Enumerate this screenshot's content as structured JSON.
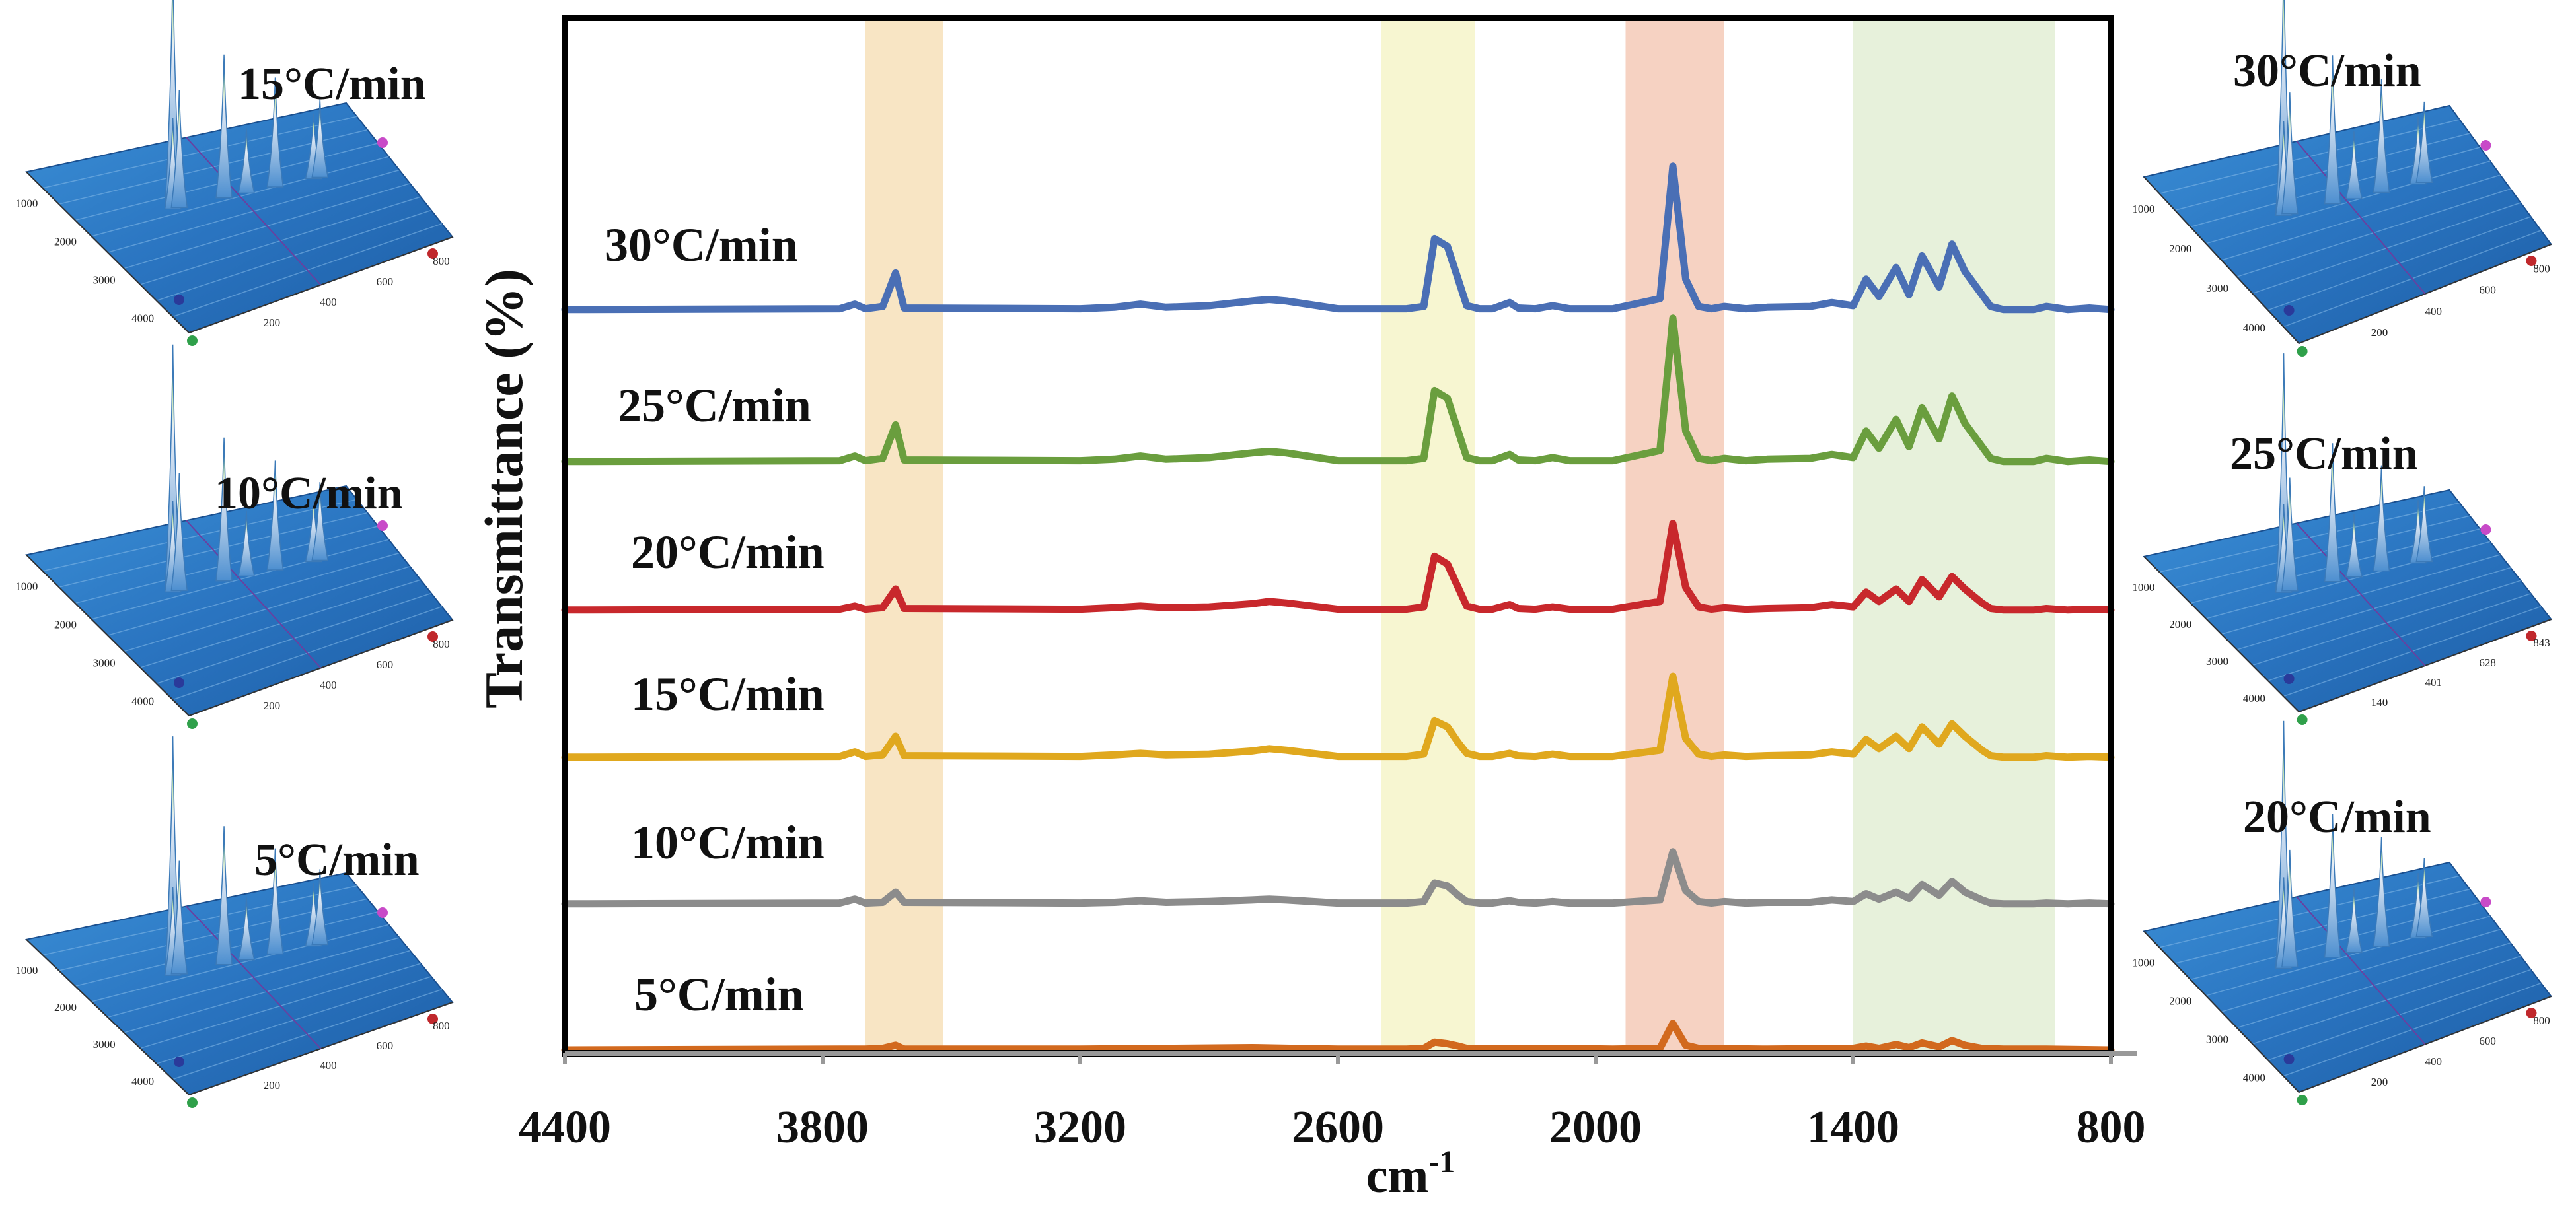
{
  "chart_data": {
    "type": "line",
    "title": "",
    "xlabel": "cm",
    "xlabel_superscript": "-1",
    "ylabel": "Transmittance (%)",
    "xlim": [
      4400,
      800
    ],
    "x_reversed": true,
    "x_ticks": [
      "4400",
      "3800",
      "3200",
      "2600",
      "2000",
      "1400",
      "800"
    ],
    "x_tick_values": [
      4400,
      3800,
      3200,
      2600,
      2000,
      1400,
      800
    ],
    "highlight_bands": [
      {
        "name": "band-1",
        "from": 3700,
        "to": 3520,
        "color": "#f6dcb0"
      },
      {
        "name": "band-2",
        "from": 2500,
        "to": 2280,
        "color": "#f4f3c2"
      },
      {
        "name": "band-3",
        "from": 1930,
        "to": 1700,
        "color": "#f3c3ae"
      },
      {
        "name": "band-4",
        "from": 1400,
        "to": 930,
        "color": "#dfeccf"
      }
    ],
    "series": [
      {
        "name": "30°C/min",
        "color": "#4a6fb5",
        "offset": 5,
        "scale": 1.0,
        "x": [
          4400,
          3760,
          3725,
          3700,
          3660,
          3630,
          3610,
          3200,
          3120,
          3060,
          3000,
          2900,
          2800,
          2760,
          2720,
          2600,
          2440,
          2400,
          2375,
          2345,
          2320,
          2300,
          2270,
          2240,
          2200,
          2180,
          2140,
          2100,
          2060,
          2020,
          1960,
          1850,
          1820,
          1790,
          1760,
          1730,
          1700,
          1650,
          1600,
          1500,
          1450,
          1400,
          1370,
          1340,
          1300,
          1270,
          1240,
          1200,
          1170,
          1140,
          1100,
          1080,
          1050,
          1020,
          980,
          950,
          900,
          850,
          800
        ],
        "y": [
          0.01,
          0.02,
          0.08,
          0.02,
          0.05,
          0.48,
          0.03,
          0.02,
          0.04,
          0.08,
          0.04,
          0.06,
          0.12,
          0.14,
          0.12,
          0.02,
          0.02,
          0.05,
          0.92,
          0.82,
          0.4,
          0.06,
          0.02,
          0.02,
          0.1,
          0.03,
          0.02,
          0.06,
          0.02,
          0.02,
          0.02,
          0.15,
          1.85,
          0.4,
          0.05,
          0.02,
          0.05,
          0.02,
          0.04,
          0.05,
          0.1,
          0.06,
          0.4,
          0.18,
          0.55,
          0.2,
          0.7,
          0.3,
          0.85,
          0.5,
          0.2,
          0.05,
          0.01,
          0.01,
          0.01,
          0.05,
          0.01,
          0.03,
          0.01
        ]
      },
      {
        "name": "25°C/min",
        "color": "#6a9e3e",
        "offset": 4,
        "scale": 1.0,
        "x": [
          4400,
          3760,
          3725,
          3700,
          3660,
          3630,
          3610,
          3200,
          3120,
          3060,
          3000,
          2900,
          2800,
          2760,
          2720,
          2600,
          2440,
          2400,
          2375,
          2345,
          2320,
          2300,
          2270,
          2240,
          2200,
          2180,
          2140,
          2100,
          2060,
          2020,
          1960,
          1850,
          1820,
          1790,
          1760,
          1730,
          1700,
          1650,
          1600,
          1500,
          1450,
          1400,
          1370,
          1340,
          1300,
          1270,
          1240,
          1200,
          1170,
          1140,
          1100,
          1080,
          1050,
          1020,
          980,
          950,
          900,
          850,
          800
        ],
        "y": [
          0.01,
          0.02,
          0.08,
          0.02,
          0.05,
          0.48,
          0.03,
          0.02,
          0.04,
          0.08,
          0.04,
          0.06,
          0.12,
          0.14,
          0.12,
          0.02,
          0.02,
          0.05,
          0.92,
          0.82,
          0.4,
          0.06,
          0.02,
          0.02,
          0.1,
          0.03,
          0.02,
          0.06,
          0.02,
          0.02,
          0.02,
          0.15,
          1.85,
          0.4,
          0.05,
          0.02,
          0.05,
          0.02,
          0.04,
          0.05,
          0.1,
          0.06,
          0.4,
          0.18,
          0.55,
          0.2,
          0.7,
          0.3,
          0.85,
          0.5,
          0.2,
          0.05,
          0.01,
          0.01,
          0.01,
          0.05,
          0.01,
          0.03,
          0.01
        ]
      },
      {
        "name": "20°C/min",
        "color": "#c8282c",
        "offset": 3,
        "scale": 1.0,
        "x": [
          4400,
          3760,
          3725,
          3700,
          3660,
          3630,
          3610,
          3200,
          3120,
          3060,
          3000,
          2900,
          2800,
          2760,
          2720,
          2600,
          2440,
          2400,
          2375,
          2345,
          2320,
          2300,
          2270,
          2240,
          2200,
          2180,
          2140,
          2100,
          2060,
          2020,
          1960,
          1850,
          1820,
          1790,
          1760,
          1730,
          1700,
          1650,
          1600,
          1500,
          1450,
          1400,
          1370,
          1340,
          1300,
          1270,
          1240,
          1200,
          1170,
          1140,
          1100,
          1080,
          1050,
          1020,
          980,
          950,
          900,
          850,
          800
        ],
        "y": [
          0.01,
          0.02,
          0.06,
          0.02,
          0.04,
          0.28,
          0.03,
          0.02,
          0.04,
          0.06,
          0.04,
          0.05,
          0.09,
          0.12,
          0.1,
          0.02,
          0.02,
          0.05,
          0.7,
          0.6,
          0.3,
          0.06,
          0.02,
          0.02,
          0.08,
          0.03,
          0.02,
          0.05,
          0.02,
          0.02,
          0.02,
          0.12,
          1.12,
          0.3,
          0.05,
          0.02,
          0.04,
          0.02,
          0.03,
          0.04,
          0.08,
          0.05,
          0.24,
          0.12,
          0.28,
          0.12,
          0.4,
          0.18,
          0.44,
          0.28,
          0.1,
          0.03,
          0.01,
          0.01,
          0.01,
          0.03,
          0.01,
          0.02,
          0.01
        ]
      },
      {
        "name": "15°C/min",
        "color": "#e0a81e",
        "offset": 2,
        "scale": 1.0,
        "x": [
          4400,
          3760,
          3725,
          3700,
          3660,
          3630,
          3610,
          3200,
          3120,
          3060,
          3000,
          2900,
          2800,
          2760,
          2720,
          2600,
          2440,
          2400,
          2375,
          2345,
          2320,
          2300,
          2270,
          2240,
          2200,
          2180,
          2140,
          2100,
          2060,
          2020,
          1960,
          1850,
          1820,
          1790,
          1760,
          1730,
          1700,
          1650,
          1600,
          1500,
          1450,
          1400,
          1370,
          1340,
          1300,
          1270,
          1240,
          1200,
          1170,
          1140,
          1100,
          1080,
          1050,
          1020,
          980,
          950,
          900,
          850,
          800
        ],
        "y": [
          0.01,
          0.02,
          0.08,
          0.02,
          0.04,
          0.28,
          0.03,
          0.02,
          0.04,
          0.06,
          0.04,
          0.05,
          0.09,
          0.12,
          0.1,
          0.02,
          0.02,
          0.05,
          0.48,
          0.4,
          0.2,
          0.06,
          0.02,
          0.02,
          0.06,
          0.03,
          0.02,
          0.05,
          0.02,
          0.02,
          0.02,
          0.1,
          1.05,
          0.25,
          0.05,
          0.02,
          0.04,
          0.02,
          0.03,
          0.04,
          0.08,
          0.05,
          0.24,
          0.12,
          0.28,
          0.12,
          0.4,
          0.18,
          0.44,
          0.28,
          0.1,
          0.03,
          0.01,
          0.01,
          0.01,
          0.03,
          0.01,
          0.02,
          0.01
        ]
      },
      {
        "name": "10°C/min",
        "color": "#8c8c8c",
        "offset": 1,
        "scale": 1.0,
        "x": [
          4400,
          3760,
          3725,
          3700,
          3660,
          3630,
          3610,
          3200,
          3120,
          3060,
          3000,
          2900,
          2800,
          2760,
          2720,
          2600,
          2440,
          2400,
          2375,
          2345,
          2320,
          2300,
          2270,
          2240,
          2200,
          2180,
          2140,
          2100,
          2060,
          2020,
          1960,
          1850,
          1820,
          1790,
          1760,
          1730,
          1700,
          1650,
          1600,
          1500,
          1450,
          1400,
          1370,
          1340,
          1300,
          1270,
          1240,
          1200,
          1170,
          1140,
          1100,
          1080,
          1050,
          1020,
          980,
          950,
          900,
          850,
          800
        ],
        "y": [
          0.01,
          0.02,
          0.07,
          0.02,
          0.03,
          0.16,
          0.03,
          0.02,
          0.03,
          0.05,
          0.03,
          0.04,
          0.06,
          0.07,
          0.06,
          0.02,
          0.02,
          0.04,
          0.28,
          0.24,
          0.12,
          0.04,
          0.02,
          0.02,
          0.05,
          0.03,
          0.02,
          0.04,
          0.02,
          0.02,
          0.02,
          0.06,
          0.68,
          0.18,
          0.04,
          0.02,
          0.04,
          0.02,
          0.03,
          0.03,
          0.06,
          0.04,
          0.14,
          0.07,
          0.16,
          0.08,
          0.26,
          0.12,
          0.3,
          0.16,
          0.06,
          0.02,
          0.01,
          0.01,
          0.01,
          0.02,
          0.01,
          0.02,
          0.01
        ]
      },
      {
        "name": "5°C/min",
        "color": "#d2691e",
        "offset": 0,
        "scale": 1.0,
        "x": [
          4400,
          3760,
          3700,
          3660,
          3630,
          3610,
          3200,
          3000,
          2800,
          2700,
          2600,
          2440,
          2400,
          2375,
          2345,
          2320,
          2300,
          2200,
          2100,
          1960,
          1850,
          1820,
          1790,
          1760,
          1600,
          1400,
          1370,
          1340,
          1300,
          1270,
          1240,
          1200,
          1170,
          1140,
          1100,
          1050,
          950,
          800
        ],
        "y": [
          0.0,
          0.01,
          0.01,
          0.02,
          0.06,
          0.01,
          0.01,
          0.02,
          0.03,
          0.02,
          0.01,
          0.01,
          0.02,
          0.1,
          0.08,
          0.05,
          0.02,
          0.02,
          0.02,
          0.01,
          0.02,
          0.34,
          0.06,
          0.02,
          0.01,
          0.02,
          0.05,
          0.02,
          0.07,
          0.03,
          0.09,
          0.04,
          0.12,
          0.06,
          0.02,
          0.01,
          0.01,
          0.0
        ]
      }
    ]
  },
  "side_panels": {
    "left": [
      {
        "label": "15°C/min"
      },
      {
        "label": "10°C/min"
      },
      {
        "label": "5°C/min"
      }
    ],
    "right": [
      {
        "label": "30°C/min"
      },
      {
        "label": "25°C/min"
      },
      {
        "label": "20°C/min"
      }
    ],
    "axis_ticks_a": [
      "1000",
      "2000",
      "3000",
      "4000"
    ],
    "axis_ticks_b": [
      "200",
      "400",
      "600",
      "800"
    ],
    "axis_ticks_c": [
      "140",
      "401",
      "628",
      "843"
    ]
  }
}
